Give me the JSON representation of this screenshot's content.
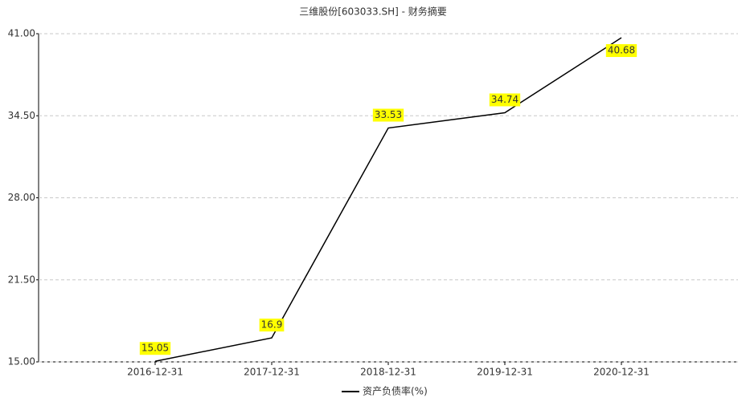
{
  "chart_data": {
    "type": "line",
    "title": "三维股份[603033.SH] - 财务摘要",
    "categories": [
      "2016-12-31",
      "2017-12-31",
      "2018-12-31",
      "2019-12-31",
      "2020-12-31"
    ],
    "series": [
      {
        "name": "资产负债率(%)",
        "color": "#000000",
        "values": [
          15.05,
          16.9,
          33.53,
          34.74,
          40.68
        ]
      }
    ],
    "ylim": [
      15,
      41
    ],
    "yticks": [
      {
        "value": 15,
        "label": "15.00"
      },
      {
        "value": 21.5,
        "label": "21.50"
      },
      {
        "value": 28,
        "label": "28.00"
      },
      {
        "value": 34.5,
        "label": "34.50"
      },
      {
        "value": 41,
        "label": "41.00"
      }
    ],
    "grid": true,
    "label_color": "#ffff00",
    "legend": "bottom"
  }
}
